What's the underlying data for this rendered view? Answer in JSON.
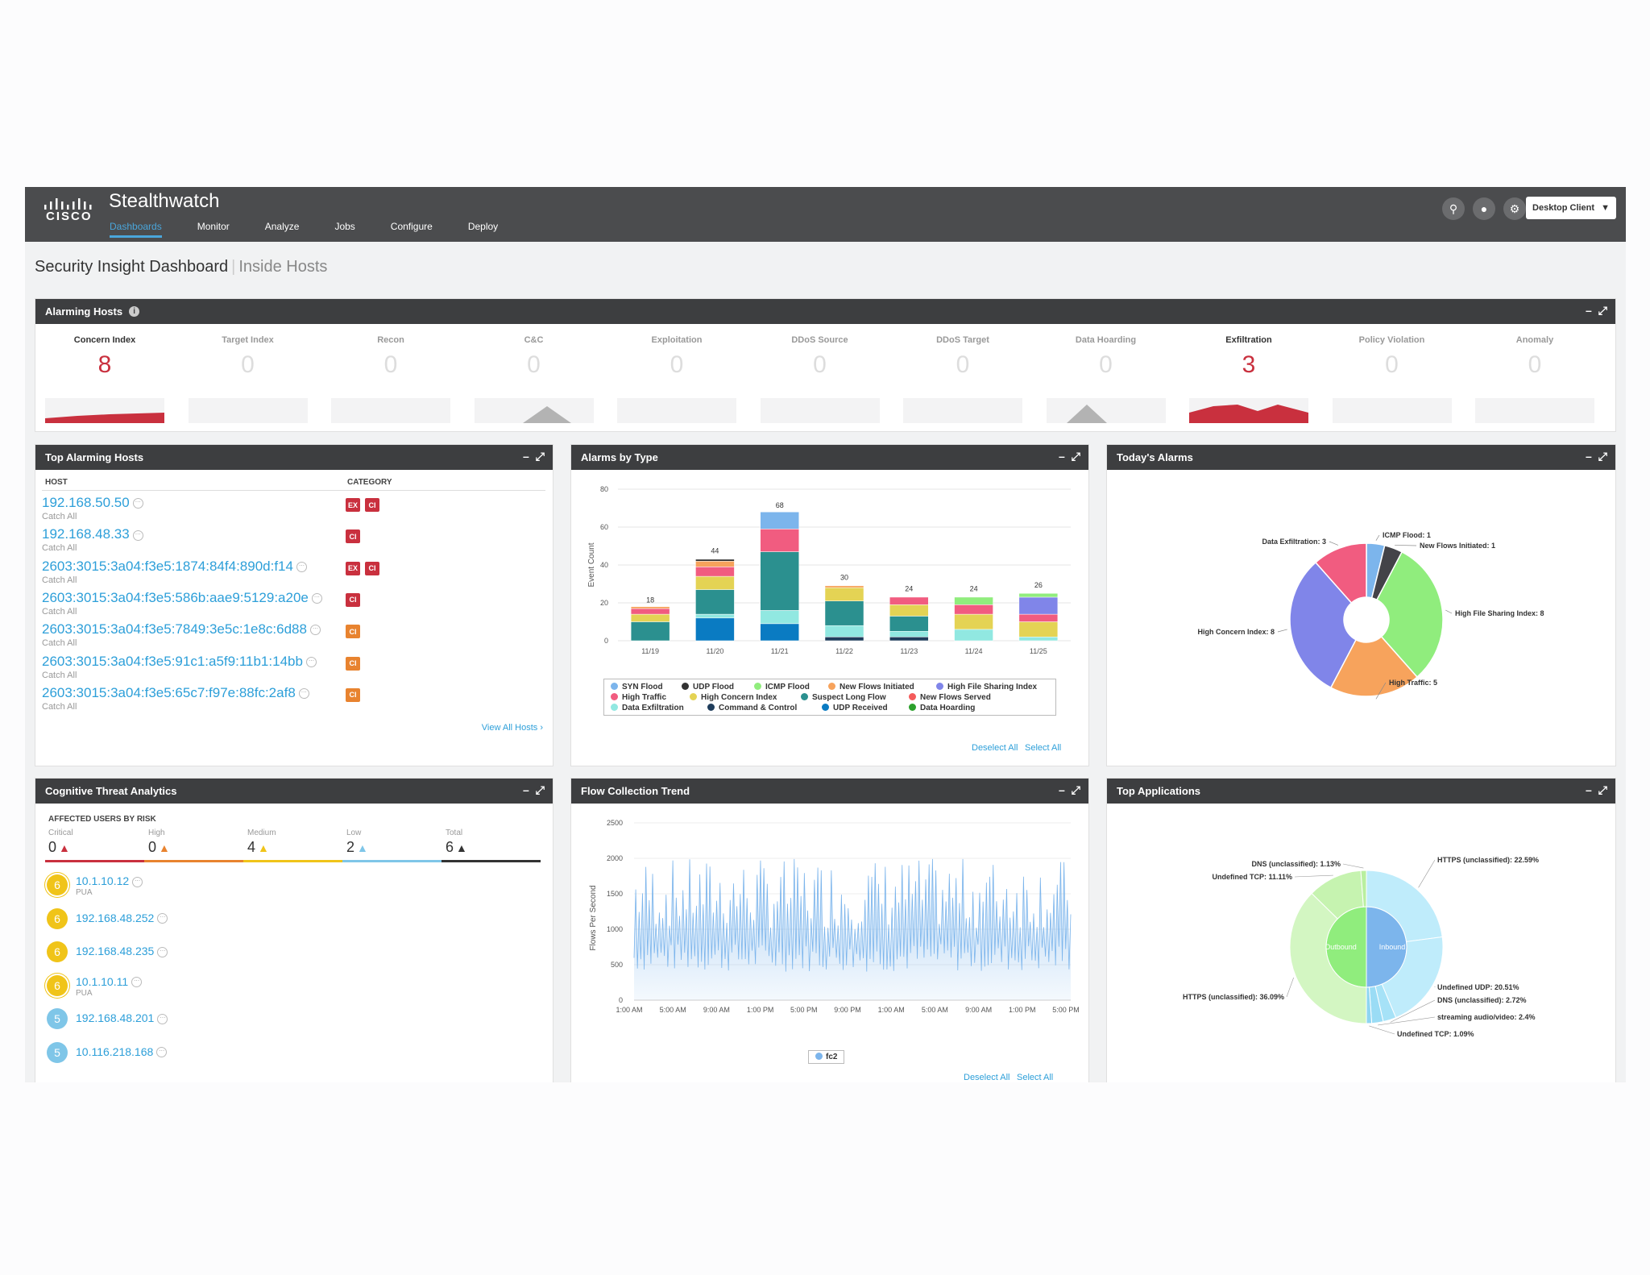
{
  "app": {
    "logo_text": "CISCO",
    "name": "Stealthwatch",
    "nav": [
      "Dashboards",
      "Monitor",
      "Analyze",
      "Jobs",
      "Configure",
      "Deploy"
    ],
    "active_nav": "Dashboards",
    "client_button": "Desktop Client",
    "icons": [
      "search-icon",
      "user-icon",
      "gear-icon"
    ]
  },
  "page": {
    "title": "Security Insight Dashboard",
    "subtitle": "Inside Hosts"
  },
  "alarming_hosts": {
    "title": "Alarming Hosts",
    "metrics": [
      {
        "label": "Concern Index",
        "value": "8",
        "active": true
      },
      {
        "label": "Target Index",
        "value": "0",
        "active": false
      },
      {
        "label": "Recon",
        "value": "0",
        "active": false
      },
      {
        "label": "C&C",
        "value": "0",
        "active": false
      },
      {
        "label": "Exploitation",
        "value": "0",
        "active": false
      },
      {
        "label": "DDoS Source",
        "value": "0",
        "active": false
      },
      {
        "label": "DDoS Target",
        "value": "0",
        "active": false
      },
      {
        "label": "Data Hoarding",
        "value": "0",
        "active": false
      },
      {
        "label": "Exfiltration",
        "value": "3",
        "active": true
      },
      {
        "label": "Policy Violation",
        "value": "0",
        "active": false
      },
      {
        "label": "Anomaly",
        "value": "0",
        "active": false
      }
    ]
  },
  "top_hosts": {
    "title": "Top Alarming Hosts",
    "col_host": "HOST",
    "col_category": "CATEGORY",
    "rows": [
      {
        "host": "192.168.50.50",
        "group": "Catch All",
        "tags": [
          "EX",
          "CI"
        ],
        "ci_color": "red"
      },
      {
        "host": "192.168.48.33",
        "group": "Catch All",
        "tags": [
          "CI"
        ],
        "ci_color": "red"
      },
      {
        "host": "2603:3015:3a04:f3e5:1874:84f4:890d:f14",
        "group": "Catch All",
        "tags": [
          "EX",
          "CI"
        ],
        "ci_color": "red"
      },
      {
        "host": "2603:3015:3a04:f3e5:586b:aae9:5129:a20e",
        "group": "Catch All",
        "tags": [
          "CI"
        ],
        "ci_color": "red"
      },
      {
        "host": "2603:3015:3a04:f3e5:7849:3e5c:1e8c:6d88",
        "group": "Catch All",
        "tags": [
          "CI"
        ],
        "ci_color": "orange"
      },
      {
        "host": "2603:3015:3a04:f3e5:91c1:a5f9:11b1:14bb",
        "group": "Catch All",
        "tags": [
          "CI"
        ],
        "ci_color": "orange"
      },
      {
        "host": "2603:3015:3a04:f3e5:65c7:f97e:88fc:2af8",
        "group": "Catch All",
        "tags": [
          "CI"
        ],
        "ci_color": "orange"
      }
    ],
    "view_all": "View All Hosts"
  },
  "alarms_by_type": {
    "title": "Alarms by Type",
    "deselect_all": "Deselect All",
    "select_all": "Select All",
    "legend": [
      {
        "name": "SYN Flood",
        "color": "#7cb5ec"
      },
      {
        "name": "UDP Flood",
        "color": "#333333"
      },
      {
        "name": "ICMP Flood",
        "color": "#90ed7d"
      },
      {
        "name": "New Flows Initiated",
        "color": "#f7a35c"
      },
      {
        "name": "High File Sharing Index",
        "color": "#8085e9"
      },
      {
        "name": "High Traffic",
        "color": "#f15c80"
      },
      {
        "name": "High Concern Index",
        "color": "#e4d354"
      },
      {
        "name": "Suspect Long Flow",
        "color": "#2b908f"
      },
      {
        "name": "New Flows Served",
        "color": "#f45b5b"
      },
      {
        "name": "Data Exfiltration",
        "color": "#91e8e1"
      },
      {
        "name": "Command & Control",
        "color": "#1f3d5c"
      },
      {
        "name": "UDP Received",
        "color": "#0a7bc2"
      },
      {
        "name": "Data Hoarding",
        "color": "#2ca02c"
      }
    ]
  },
  "todays_alarms": {
    "title": "Today's Alarms"
  },
  "cta": {
    "title": "Cognitive Threat Analytics",
    "section": "AFFECTED USERS BY RISK",
    "risk": [
      {
        "label": "Critical",
        "value": "0",
        "color": "#c9303e"
      },
      {
        "label": "High",
        "value": "0",
        "color": "#e8832f"
      },
      {
        "label": "Medium",
        "value": "4",
        "color": "#f0c419"
      },
      {
        "label": "Low",
        "value": "2",
        "color": "#7fc6e8"
      },
      {
        "label": "Total",
        "value": "6",
        "color": "#333333"
      }
    ],
    "rows": [
      {
        "score": "6",
        "ip": "10.1.10.12",
        "sub": "PUA",
        "color": "#f0c419"
      },
      {
        "score": "6",
        "ip": "192.168.48.252",
        "sub": "",
        "color": "#f0c419"
      },
      {
        "score": "6",
        "ip": "192.168.48.235",
        "sub": "",
        "color": "#f0c419"
      },
      {
        "score": "6",
        "ip": "10.1.10.11",
        "sub": "PUA",
        "color": "#f0c419"
      },
      {
        "score": "5",
        "ip": "192.168.48.201",
        "sub": "",
        "color": "#7fc6e8"
      },
      {
        "score": "5",
        "ip": "10.116.218.168",
        "sub": "",
        "color": "#7fc6e8"
      }
    ]
  },
  "flow_trend": {
    "title": "Flow Collection Trend",
    "legend": "fc2",
    "deselect_all": "Deselect All",
    "select_all": "Select All"
  },
  "top_apps": {
    "title": "Top Applications"
  },
  "chart_data": [
    {
      "type": "bar",
      "title": "Alarms by Type",
      "ylabel": "Event Count",
      "ylim": [
        0,
        80
      ],
      "yticks": [
        0,
        20,
        40,
        60,
        80
      ],
      "categories": [
        "11/19",
        "11/20",
        "11/21",
        "11/22",
        "11/23",
        "11/24",
        "11/25"
      ],
      "totals": [
        18,
        44,
        68,
        30,
        24,
        24,
        26
      ],
      "series": [
        {
          "name": "UDP Received",
          "values": [
            0,
            12,
            9,
            0,
            0,
            0,
            0
          ]
        },
        {
          "name": "Command & Control",
          "values": [
            0,
            0,
            0,
            2,
            2,
            0,
            0
          ]
        },
        {
          "name": "Data Exfiltration",
          "values": [
            0,
            2,
            7,
            6,
            3,
            6,
            2
          ]
        },
        {
          "name": "Suspect Long Flow",
          "values": [
            10,
            13,
            31,
            13,
            8,
            0,
            0
          ]
        },
        {
          "name": "High Concern Index",
          "values": [
            4,
            7,
            0,
            7,
            6,
            8,
            8
          ]
        },
        {
          "name": "High Traffic",
          "values": [
            3,
            5,
            12,
            0,
            4,
            5,
            4
          ]
        },
        {
          "name": "High File Sharing Index",
          "values": [
            0,
            0,
            0,
            0,
            0,
            0,
            9
          ]
        },
        {
          "name": "ICMP Flood",
          "values": [
            0,
            0,
            0,
            0,
            0,
            4,
            2
          ]
        },
        {
          "name": "New Flows Initiated",
          "values": [
            1,
            3,
            0,
            1,
            0,
            0,
            0
          ]
        },
        {
          "name": "UDP Flood",
          "values": [
            0,
            1,
            0,
            0,
            0,
            0,
            0
          ]
        },
        {
          "name": "SYN Flood",
          "values": [
            0,
            0,
            9,
            0,
            0,
            0,
            0
          ]
        }
      ]
    },
    {
      "type": "pie",
      "title": "Today's Alarms",
      "slices": [
        {
          "name": "ICMP Flood",
          "value": 1,
          "label": "ICMP Flood: 1",
          "color": "#7cb5ec"
        },
        {
          "name": "New Flows Initiated",
          "value": 1,
          "label": "New Flows Initiated: 1",
          "color": "#434348"
        },
        {
          "name": "High File Sharing Index",
          "value": 8,
          "label": "High File Sharing Index: 8",
          "color": "#90ed7d"
        },
        {
          "name": "High Traffic",
          "value": 5,
          "label": "High Traffic: 5",
          "color": "#f7a35c"
        },
        {
          "name": "High Concern Index",
          "value": 8,
          "label": "High Concern Index: 8",
          "color": "#8085e9"
        },
        {
          "name": "Data Exfiltration",
          "value": 3,
          "label": "Data Exfiltration: 3",
          "color": "#f15c80"
        }
      ]
    },
    {
      "type": "area",
      "title": "Flow Collection Trend",
      "ylabel": "Flows Per Second",
      "ylim": [
        0,
        2500
      ],
      "yticks": [
        0,
        500,
        1000,
        1500,
        2000,
        2500
      ],
      "xticks": [
        "1:00 AM",
        "5:00 AM",
        "9:00 AM",
        "1:00 PM",
        "5:00 PM",
        "9:00 PM",
        "1:00 AM",
        "5:00 AM",
        "9:00 AM",
        "1:00 PM",
        "5:00 PM"
      ],
      "series": [
        {
          "name": "fc2"
        }
      ],
      "range": [
        400,
        2000
      ]
    },
    {
      "type": "pie",
      "title": "Top Applications",
      "inner": [
        {
          "name": "Outbound",
          "value": 50,
          "color": "#90ed7d"
        },
        {
          "name": "Inbound",
          "value": 50,
          "color": "#7cb5ec"
        }
      ],
      "slices": [
        {
          "label": "HTTPS (unclassified): 22.59%",
          "value": 22.59,
          "color": "#bfecfb"
        },
        {
          "label": "Undefined UDP: 20.51%",
          "value": 20.51,
          "color": "#bfecfb"
        },
        {
          "label": "DNS (unclassified): 2.72%",
          "value": 2.72,
          "color": "#a6e2f7"
        },
        {
          "label": "streaming audio/video: 2.4%",
          "value": 2.4,
          "color": "#9adcf5"
        },
        {
          "label": "Undefined TCP: 1.09%",
          "value": 1.09,
          "color": "#8ed5f2"
        },
        {
          "label": "HTTPS (unclassified): 36.09%",
          "value": 36.09,
          "color": "#d3f6c2"
        },
        {
          "label": "Undefined TCP: 11.11%",
          "value": 11.11,
          "color": "#c6f3b0"
        },
        {
          "label": "DNS (unclassified): 1.13%",
          "value": 1.13,
          "color": "#b9ef9f"
        }
      ]
    }
  ]
}
